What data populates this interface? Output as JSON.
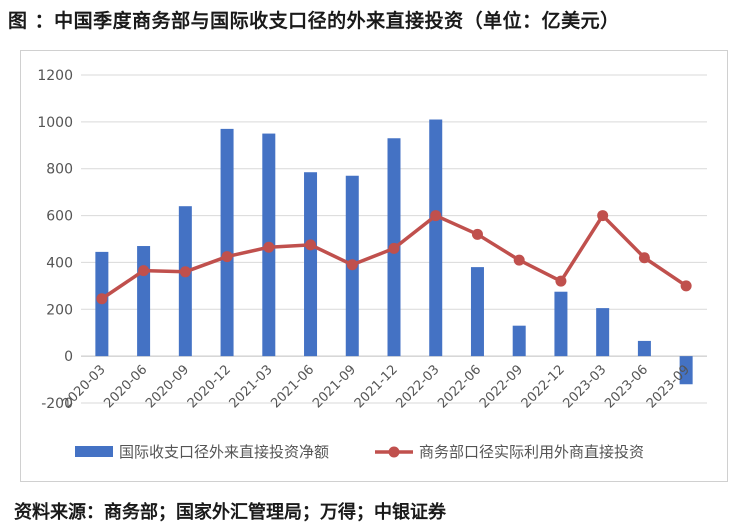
{
  "title": "图 ：中国季度商务部与国际收支口径的外来直接投资（单位：亿美元）",
  "source": "资料来源：商务部；国家外汇管理局；万得；中银证券",
  "chart_data": {
    "type": "bar",
    "categories": [
      "2020-03",
      "2020-06",
      "2020-09",
      "2020-12",
      "2021-03",
      "2021-06",
      "2021-09",
      "2021-12",
      "2022-03",
      "2022-06",
      "2022-09",
      "2022-12",
      "2023-03",
      "2023-06",
      "2023-09"
    ],
    "series": [
      {
        "name": "国际收支口径外来直接投资净额",
        "type": "bar",
        "color": "#4472c4",
        "values": [
          445,
          470,
          640,
          970,
          950,
          785,
          770,
          930,
          1010,
          380,
          130,
          275,
          205,
          65,
          -120
        ]
      },
      {
        "name": "商务部口径实际利用外商直接投资",
        "type": "line",
        "color": "#c0504d",
        "values": [
          245,
          365,
          360,
          425,
          465,
          475,
          390,
          460,
          600,
          520,
          410,
          320,
          600,
          420,
          300
        ]
      }
    ],
    "yticks": [
      "1200",
      "1000",
      "800",
      "600",
      "400",
      "200",
      "0",
      "-200"
    ],
    "ylim": [
      -200,
      1200
    ],
    "grid": true,
    "legend": "bottom"
  }
}
